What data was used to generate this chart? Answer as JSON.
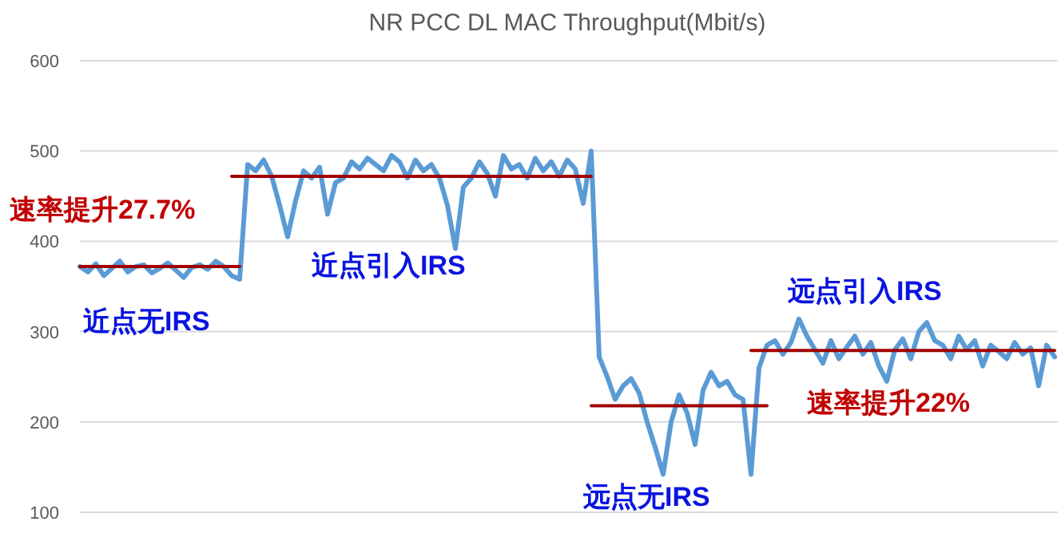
{
  "chart_data": {
    "type": "line",
    "title": "NR PCC DL MAC Throughput(Mbit/s)",
    "categories": [
      null,
      null,
      null,
      null,
      null,
      null,
      null,
      null,
      null,
      null,
      null,
      null,
      null,
      null,
      null,
      null,
      null,
      null,
      null,
      null,
      null,
      null,
      null,
      null,
      null,
      null,
      null,
      null,
      null,
      null,
      null,
      null,
      null,
      null,
      null,
      null,
      null,
      null,
      null,
      null,
      null,
      null,
      null,
      null,
      null,
      null,
      null,
      null,
      null,
      null,
      null,
      null,
      null,
      null,
      null,
      null,
      null,
      null,
      null,
      null,
      null,
      null,
      null,
      null,
      null,
      null,
      null,
      null,
      null,
      null,
      null,
      null,
      null,
      null,
      null,
      null,
      null,
      null,
      null,
      null,
      null,
      null,
      null,
      null,
      null,
      null,
      null,
      null,
      null,
      null,
      null,
      null,
      null,
      null,
      null,
      null,
      null,
      null,
      null,
      null,
      null,
      null,
      null,
      null,
      null,
      null,
      null,
      null,
      null,
      null,
      null,
      null,
      null,
      null,
      null,
      null,
      null,
      null,
      null,
      null,
      null,
      null,
      null
    ],
    "series": [
      {
        "color": "#5b9bd5",
        "values": [
          372,
          366,
          375,
          362,
          370,
          378,
          366,
          372,
          374,
          365,
          370,
          376,
          368,
          360,
          371,
          374,
          369,
          378,
          372,
          362,
          358,
          485,
          478,
          490,
          472,
          440,
          405,
          445,
          478,
          470,
          482,
          430,
          465,
          470,
          488,
          480,
          492,
          485,
          478,
          495,
          488,
          470,
          490,
          478,
          485,
          470,
          440,
          392,
          460,
          470,
          488,
          475,
          450,
          495,
          480,
          485,
          470,
          492,
          478,
          488,
          472,
          490,
          480,
          442,
          500,
          272,
          250,
          225,
          240,
          248,
          232,
          200,
          172,
          142,
          200,
          230,
          210,
          175,
          235,
          255,
          240,
          245,
          230,
          225,
          142,
          260,
          285,
          290,
          275,
          288,
          314,
          295,
          280,
          265,
          290,
          270,
          283,
          295,
          275,
          288,
          262,
          245,
          280,
          292,
          270,
          300,
          310,
          290,
          285,
          270,
          295,
          280,
          290,
          262,
          285,
          278,
          270,
          288,
          275,
          282,
          240,
          285,
          272
        ]
      },
      {
        "color": "#a00000",
        "values": [
          372,
          372,
          372,
          372,
          372,
          372,
          372,
          372,
          372,
          372,
          372,
          372,
          372,
          372,
          372,
          372,
          372,
          372,
          372,
          372,
          372,
          null,
          null,
          null,
          null,
          null,
          null,
          null,
          null,
          null,
          null,
          null,
          null,
          null,
          null,
          null,
          null,
          null,
          null,
          null,
          null,
          null,
          null,
          null,
          null,
          null,
          null,
          null,
          null,
          null,
          null,
          null,
          null,
          null,
          null,
          null,
          null,
          null,
          null,
          null,
          null,
          null,
          null,
          null,
          null,
          null,
          null,
          null,
          null,
          null,
          null,
          null,
          null,
          null,
          null,
          null,
          null,
          null,
          null,
          null,
          null,
          null,
          null,
          null,
          null,
          null,
          null,
          null,
          null,
          null,
          null,
          null,
          null,
          null,
          null,
          null,
          null,
          null,
          null,
          null,
          null,
          null,
          null,
          null,
          null,
          null,
          null,
          null,
          null,
          null,
          null,
          null,
          null,
          null,
          null,
          null,
          null,
          null,
          null,
          null,
          null,
          null,
          null
        ]
      },
      {
        "color": "#a00000",
        "values": [
          null,
          null,
          null,
          null,
          null,
          null,
          null,
          null,
          null,
          null,
          null,
          null,
          null,
          null,
          null,
          null,
          null,
          null,
          null,
          472,
          472,
          472,
          472,
          472,
          472,
          472,
          472,
          472,
          472,
          472,
          472,
          472,
          472,
          472,
          472,
          472,
          472,
          472,
          472,
          472,
          472,
          472,
          472,
          472,
          472,
          472,
          472,
          472,
          472,
          472,
          472,
          472,
          472,
          472,
          472,
          472,
          472,
          472,
          472,
          472,
          472,
          472,
          472,
          472,
          472,
          null,
          null,
          null,
          null,
          null,
          null,
          null,
          null,
          null,
          null,
          null,
          null,
          null,
          null,
          null,
          null,
          null,
          null,
          null,
          null,
          null,
          null,
          null,
          null,
          null,
          null,
          null,
          null,
          null,
          null,
          null,
          null,
          null,
          null,
          null,
          null,
          null,
          null,
          null,
          null,
          null,
          null,
          null,
          null,
          null,
          null,
          null,
          null,
          null,
          null,
          null,
          null,
          null,
          null,
          null,
          null,
          null,
          null
        ]
      },
      {
        "color": "#a00000",
        "values": [
          null,
          null,
          null,
          null,
          null,
          null,
          null,
          null,
          null,
          null,
          null,
          null,
          null,
          null,
          null,
          null,
          null,
          null,
          null,
          null,
          null,
          null,
          null,
          null,
          null,
          null,
          null,
          null,
          null,
          null,
          null,
          null,
          null,
          null,
          null,
          null,
          null,
          null,
          null,
          null,
          null,
          null,
          null,
          null,
          null,
          null,
          null,
          null,
          null,
          null,
          null,
          null,
          null,
          null,
          null,
          null,
          null,
          null,
          null,
          null,
          null,
          null,
          null,
          null,
          218,
          218,
          218,
          218,
          218,
          218,
          218,
          218,
          218,
          218,
          218,
          218,
          218,
          218,
          218,
          218,
          218,
          218,
          218,
          218,
          218,
          218,
          218,
          null,
          null,
          null,
          null,
          null,
          null,
          null,
          null,
          null,
          null,
          null,
          null,
          null,
          null,
          null,
          null,
          null,
          null,
          null,
          null,
          null,
          null,
          null,
          null,
          null,
          null,
          null,
          null,
          null,
          null,
          null,
          null,
          null,
          null,
          null,
          null
        ]
      },
      {
        "color": "#a00000",
        "values": [
          null,
          null,
          null,
          null,
          null,
          null,
          null,
          null,
          null,
          null,
          null,
          null,
          null,
          null,
          null,
          null,
          null,
          null,
          null,
          null,
          null,
          null,
          null,
          null,
          null,
          null,
          null,
          null,
          null,
          null,
          null,
          null,
          null,
          null,
          null,
          null,
          null,
          null,
          null,
          null,
          null,
          null,
          null,
          null,
          null,
          null,
          null,
          null,
          null,
          null,
          null,
          null,
          null,
          null,
          null,
          null,
          null,
          null,
          null,
          null,
          null,
          null,
          null,
          null,
          null,
          null,
          null,
          null,
          null,
          null,
          null,
          null,
          null,
          null,
          null,
          null,
          null,
          null,
          null,
          null,
          null,
          null,
          null,
          null,
          279,
          279,
          279,
          279,
          279,
          279,
          279,
          279,
          279,
          279,
          279,
          279,
          279,
          279,
          279,
          279,
          279,
          279,
          279,
          279,
          279,
          279,
          279,
          279,
          279,
          279,
          279,
          279,
          279,
          279,
          279,
          279,
          279,
          279,
          279,
          279,
          279,
          279,
          279
        ]
      }
    ],
    "ylim": [
      100,
      600
    ],
    "yticks": [
      100,
      200,
      300,
      400,
      500,
      600
    ],
    "tick_labels": "y",
    "grid": "y",
    "marker": "none",
    "line_style": "solid",
    "annotations": [
      "速率提升27.7%",
      "近点无IRS",
      "近点引入IRS",
      "远点无IRS",
      "远点引入IRS",
      "速率提升22%"
    ]
  }
}
